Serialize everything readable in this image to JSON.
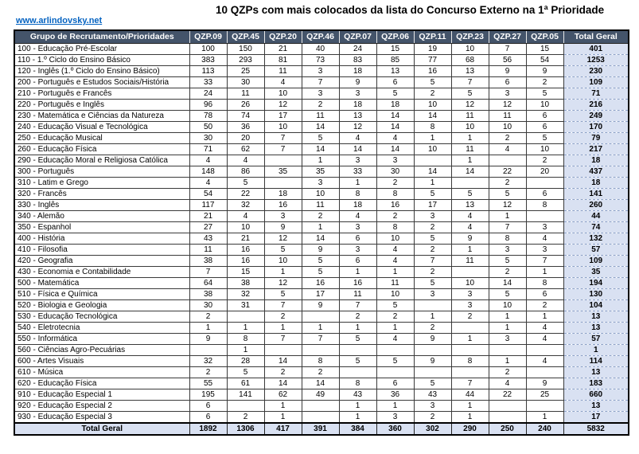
{
  "page": {
    "link_text": "www.arlindovsky.net",
    "title": "10 QZPs com mais colocados da lista do Concurso Externo na 1ª Prioridade"
  },
  "colors": {
    "header_bg": "#44546A",
    "header_text": "#FFFFFF",
    "total_column_bg": "#D9E1F2",
    "link_color": "#0563C1"
  },
  "table": {
    "columns": [
      "Grupo de Recrutamento/Prioridades",
      "QZP.09",
      "QZP.45",
      "QZP.20",
      "QZP.46",
      "QZP.07",
      "QZP.06",
      "QZP.11",
      "QZP.23",
      "QZP.27",
      "QZP.05",
      "Total Geral"
    ],
    "rows": [
      {
        "label": "100 - Educação Pré-Escolar",
        "values": [
          100,
          150,
          21,
          40,
          24,
          15,
          19,
          10,
          7,
          15
        ],
        "total": 401
      },
      {
        "label": "110 - 1.º Ciclo do Ensino Básico",
        "values": [
          383,
          293,
          81,
          73,
          83,
          85,
          77,
          68,
          56,
          54
        ],
        "total": 1253
      },
      {
        "label": "120 - Inglês (1.º Ciclo do Ensino Básico)",
        "values": [
          113,
          25,
          11,
          3,
          18,
          13,
          16,
          13,
          9,
          9
        ],
        "total": 230
      },
      {
        "label": "200 - Português e Estudos Sociais/História",
        "values": [
          33,
          30,
          4,
          7,
          9,
          6,
          5,
          7,
          6,
          2
        ],
        "total": 109
      },
      {
        "label": "210 - Português e Francês",
        "values": [
          24,
          11,
          10,
          3,
          3,
          5,
          2,
          5,
          3,
          5
        ],
        "total": 71
      },
      {
        "label": "220 - Português e Inglês",
        "values": [
          96,
          26,
          12,
          2,
          18,
          18,
          10,
          12,
          12,
          10
        ],
        "total": 216
      },
      {
        "label": "230 - Matemática e Ciências da Natureza",
        "values": [
          78,
          74,
          17,
          11,
          13,
          14,
          14,
          11,
          11,
          6
        ],
        "total": 249
      },
      {
        "label": "240 - Educação Visual e Tecnológica",
        "values": [
          50,
          36,
          10,
          14,
          12,
          14,
          8,
          10,
          10,
          6
        ],
        "total": 170
      },
      {
        "label": "250 - Educação Musical",
        "values": [
          30,
          20,
          7,
          5,
          4,
          4,
          1,
          1,
          2,
          5
        ],
        "total": 79
      },
      {
        "label": "260 - Educação Física",
        "values": [
          71,
          62,
          7,
          14,
          14,
          14,
          10,
          11,
          4,
          10
        ],
        "total": 217
      },
      {
        "label": "290 - Educação Moral e Religiosa Católica",
        "values": [
          4,
          4,
          "",
          1,
          3,
          3,
          "",
          1,
          "",
          2
        ],
        "total": 18
      },
      {
        "label": "300 - Português",
        "values": [
          148,
          86,
          35,
          35,
          33,
          30,
          14,
          14,
          22,
          20
        ],
        "total": 437
      },
      {
        "label": "310 - Latim e Grego",
        "values": [
          4,
          5,
          "",
          3,
          1,
          2,
          1,
          "",
          2,
          ""
        ],
        "total": 18
      },
      {
        "label": "320 - Francês",
        "values": [
          54,
          22,
          18,
          10,
          8,
          8,
          5,
          5,
          5,
          6
        ],
        "total": 141
      },
      {
        "label": "330 - Inglês",
        "values": [
          117,
          32,
          16,
          11,
          18,
          16,
          17,
          13,
          12,
          8
        ],
        "total": 260
      },
      {
        "label": "340 - Alemão",
        "values": [
          21,
          4,
          3,
          2,
          4,
          2,
          3,
          4,
          1,
          ""
        ],
        "total": 44
      },
      {
        "label": "350 - Espanhol",
        "values": [
          27,
          10,
          9,
          1,
          3,
          8,
          2,
          4,
          7,
          3
        ],
        "total": 74
      },
      {
        "label": "400 - História",
        "values": [
          43,
          21,
          12,
          14,
          6,
          10,
          5,
          9,
          8,
          4
        ],
        "total": 132
      },
      {
        "label": "410 - Filosofia",
        "values": [
          11,
          16,
          5,
          9,
          3,
          4,
          2,
          1,
          3,
          3
        ],
        "total": 57
      },
      {
        "label": "420 - Geografia",
        "values": [
          38,
          16,
          10,
          5,
          6,
          4,
          7,
          11,
          5,
          7
        ],
        "total": 109
      },
      {
        "label": "430 - Economia e Contabilidade",
        "values": [
          7,
          15,
          1,
          5,
          1,
          1,
          2,
          "",
          2,
          1
        ],
        "total": 35
      },
      {
        "label": "500 - Matemática",
        "values": [
          64,
          38,
          12,
          16,
          16,
          11,
          5,
          10,
          14,
          8
        ],
        "total": 194
      },
      {
        "label": "510 - Física e Química",
        "values": [
          38,
          32,
          5,
          17,
          11,
          10,
          3,
          3,
          5,
          6
        ],
        "total": 130
      },
      {
        "label": "520 - Biologia e Geologia",
        "values": [
          30,
          31,
          7,
          9,
          7,
          5,
          "",
          3,
          10,
          2
        ],
        "total": 104
      },
      {
        "label": "530 - Educação Tecnológica",
        "values": [
          2,
          "",
          2,
          "",
          2,
          2,
          1,
          2,
          1,
          1
        ],
        "total": 13
      },
      {
        "label": "540 - Eletrotecnia",
        "values": [
          1,
          1,
          1,
          1,
          1,
          1,
          2,
          "",
          1,
          4
        ],
        "total": 13
      },
      {
        "label": "550 - Informática",
        "values": [
          9,
          8,
          7,
          7,
          5,
          4,
          9,
          1,
          3,
          4
        ],
        "total": 57
      },
      {
        "label": "560 - Ciências Agro-Pecuárias",
        "values": [
          "",
          1,
          "",
          "",
          "",
          "",
          "",
          "",
          "",
          ""
        ],
        "total": 1
      },
      {
        "label": "600 - Artes Visuais",
        "values": [
          32,
          28,
          14,
          8,
          5,
          5,
          9,
          8,
          1,
          4
        ],
        "total": 114
      },
      {
        "label": "610 - Música",
        "values": [
          2,
          5,
          2,
          2,
          "",
          "",
          "",
          "",
          2,
          ""
        ],
        "total": 13
      },
      {
        "label": "620 - Educação Física",
        "values": [
          55,
          61,
          14,
          14,
          8,
          6,
          5,
          7,
          4,
          9
        ],
        "total": 183
      },
      {
        "label": "910 - Educação Especial 1",
        "values": [
          195,
          141,
          62,
          49,
          43,
          36,
          43,
          44,
          22,
          25
        ],
        "total": 660
      },
      {
        "label": "920 - Educação Especial 2",
        "values": [
          6,
          "",
          1,
          "",
          1,
          1,
          3,
          1,
          "",
          ""
        ],
        "total": 13
      },
      {
        "label": "930 - Educação Especial 3",
        "values": [
          6,
          2,
          1,
          "",
          1,
          3,
          2,
          1,
          "",
          1
        ],
        "total": 17
      }
    ],
    "total_row": {
      "label": "Total Geral",
      "values": [
        1892,
        1306,
        417,
        391,
        384,
        360,
        302,
        290,
        250,
        240
      ],
      "total": 5832
    }
  }
}
